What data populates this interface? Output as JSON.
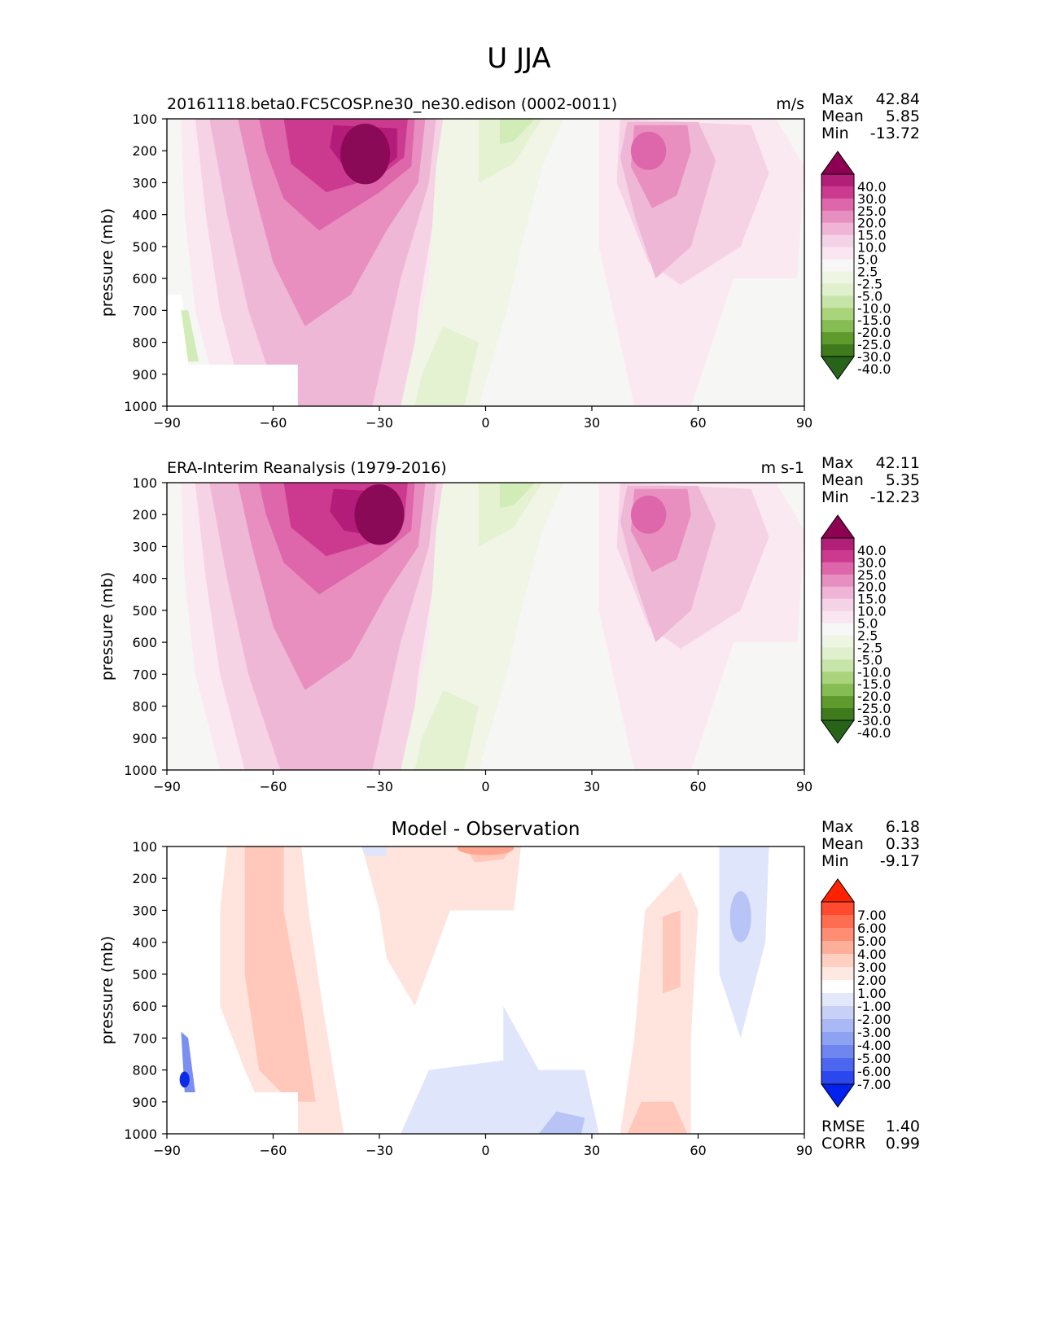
{
  "figure": {
    "title": "U JJA"
  },
  "chart_data": [
    {
      "type": "heatmap",
      "subtype": "filled-contour",
      "title": "20161118.beta0.FC5COSP.ne30_ne30.edison (0002-0011)",
      "units": "m/s",
      "xlabel": "",
      "ylabel": "pressure (mb)",
      "xlim": [
        -90,
        90
      ],
      "ylim": [
        1000,
        100
      ],
      "xticks": [
        "−90",
        "−60",
        "−30",
        "0",
        "30",
        "60",
        "90"
      ],
      "yticks": [
        "100",
        "200",
        "300",
        "400",
        "500",
        "600",
        "700",
        "800",
        "900",
        "1000"
      ],
      "stats": {
        "max_label": "Max",
        "max": "42.84",
        "mean_label": "Mean",
        "mean": "5.85",
        "min_label": "Min",
        "min": "-13.72"
      },
      "colorbar": [
        "40.0",
        "30.0",
        "25.0",
        "20.0",
        "15.0",
        "10.0",
        "5.0",
        "2.5",
        "-2.5",
        "-5.0",
        "-10.0",
        "-15.0",
        "-20.0",
        "-25.0",
        "-30.0",
        "-40.0"
      ],
      "features": [
        {
          "kind": "max",
          "lat": -34,
          "plev": 210,
          "value": 42.84
        },
        {
          "kind": "max",
          "lat": 46,
          "plev": 200,
          "value": 30
        },
        {
          "kind": "min",
          "lat": 8,
          "plev": 100,
          "value": -13.72
        }
      ]
    },
    {
      "type": "heatmap",
      "subtype": "filled-contour",
      "title": "ERA-Interim Reanalysis (1979-2016)",
      "units": "m s-1",
      "xlabel": "",
      "ylabel": "pressure (mb)",
      "xlim": [
        -90,
        90
      ],
      "ylim": [
        1000,
        100
      ],
      "xticks": [
        "−90",
        "−60",
        "−30",
        "0",
        "30",
        "60",
        "90"
      ],
      "yticks": [
        "100",
        "200",
        "300",
        "400",
        "500",
        "600",
        "700",
        "800",
        "900",
        "1000"
      ],
      "stats": {
        "max_label": "Max",
        "max": "42.11",
        "mean_label": "Mean",
        "mean": "5.35",
        "min_label": "Min",
        "min": "-12.23"
      },
      "colorbar": [
        "40.0",
        "30.0",
        "25.0",
        "20.0",
        "15.0",
        "10.0",
        "5.0",
        "2.5",
        "-2.5",
        "-5.0",
        "-10.0",
        "-15.0",
        "-20.0",
        "-25.0",
        "-30.0",
        "-40.0"
      ],
      "features": [
        {
          "kind": "max",
          "lat": -30,
          "plev": 200,
          "value": 42.11
        },
        {
          "kind": "max",
          "lat": 46,
          "plev": 200,
          "value": 28
        },
        {
          "kind": "min",
          "lat": 5,
          "plev": 100,
          "value": -12.23
        }
      ]
    },
    {
      "type": "heatmap",
      "subtype": "filled-contour",
      "title": "Model - Observation",
      "units": "",
      "xlabel": "",
      "ylabel": "pressure (mb)",
      "xlim": [
        -90,
        90
      ],
      "ylim": [
        1000,
        100
      ],
      "xticks": [
        "−90",
        "−60",
        "−30",
        "0",
        "30",
        "60",
        "90"
      ],
      "yticks": [
        "100",
        "200",
        "300",
        "400",
        "500",
        "600",
        "700",
        "800",
        "900",
        "1000"
      ],
      "stats": {
        "max_label": "Max",
        "max": "6.18",
        "mean_label": "Mean",
        "mean": "0.33",
        "min_label": "Min",
        "min": "-9.17",
        "rmse_label": "RMSE",
        "rmse": "1.40",
        "corr_label": "CORR",
        "corr": "0.99"
      },
      "colorbar": [
        "7.00",
        "6.00",
        "5.00",
        "4.00",
        "3.00",
        "2.00",
        "1.00",
        "-1.00",
        "-2.00",
        "-3.00",
        "-4.00",
        "-5.00",
        "-6.00",
        "-7.00"
      ],
      "features": [
        {
          "kind": "max",
          "lat": 0,
          "plev": 110,
          "value": 6.18
        },
        {
          "kind": "min",
          "lat": -86,
          "plev": 830,
          "value": -9.17
        }
      ]
    }
  ],
  "colors": {
    "pos_fill": [
      "#fbe9f2",
      "#f6d2e5",
      "#efb7d6",
      "#e88fc0",
      "#de66aa",
      "#cc3a8f",
      "#b31c78",
      "#8a0a57"
    ],
    "neg_fill": [
      "#f0f5e6",
      "#e4f2d2",
      "#d2ecb8",
      "#bde294"
    ],
    "neutral": "#f6f6f4",
    "masked": "#ffffff",
    "colorbar_mod": [
      "#8e0152",
      "#b21f79",
      "#cc3a8f",
      "#de66aa",
      "#e68fc0",
      "#efb4d6",
      "#f5d3e6",
      "#f9e6f0",
      "#f7f7f7",
      "#eef5e3",
      "#e0f0cd",
      "#c7e5a8",
      "#a9d47c",
      "#86bc54",
      "#5f9a2c",
      "#3f7a1c",
      "#276419"
    ],
    "colorbar_diff": [
      "#ff2200",
      "#ff4a2e",
      "#ff6d50",
      "#ff8d74",
      "#ffae99",
      "#ffcfc2",
      "#ffe8e2",
      "#ffffff",
      "#e3e8fb",
      "#c7d1f8",
      "#aab9f5",
      "#8ea2f2",
      "#6f86f0",
      "#4d66ef",
      "#2b47ee",
      "#0021ee"
    ],
    "diff_pos": [
      "#ffe4de",
      "#ffc8ba",
      "#ffa690"
    ],
    "diff_neg": [
      "#dfe5fb",
      "#b7c4f5",
      "#7a8ff0"
    ]
  }
}
